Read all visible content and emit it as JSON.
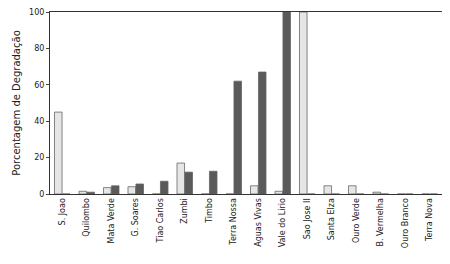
{
  "chart_data": {
    "type": "bar",
    "y_label": "Porcentagem de Degradação",
    "categories": [
      "S. Joao",
      "Quilombo",
      "Mata Verde",
      "G. Soares",
      "Tiao Carlos",
      "Zumbi",
      "Timbo",
      "Terra Nossa",
      "Aguas Vivas",
      "Vale do Lirio",
      "Sao Jose II",
      "Santa Elza",
      "Ouro Verde",
      "B. Vermelha",
      "Ouro Branco",
      "Terra Nova"
    ],
    "series": [
      {
        "color": "#e6e6e6",
        "values": [
          45,
          1.5,
          3.5,
          4,
          0,
          17,
          0,
          0,
          4.5,
          1.5,
          100,
          4.5,
          4.5,
          1,
          0,
          0
        ]
      },
      {
        "color": "#5a5a5a",
        "values": [
          0,
          1,
          4.5,
          5.5,
          7,
          12,
          12.5,
          62,
          67,
          100,
          0,
          0,
          0,
          0,
          0,
          0
        ]
      }
    ],
    "ylim": [
      0,
      100
    ],
    "yticks": [
      0,
      20,
      40,
      60,
      80,
      100
    ],
    "grid": false
  }
}
